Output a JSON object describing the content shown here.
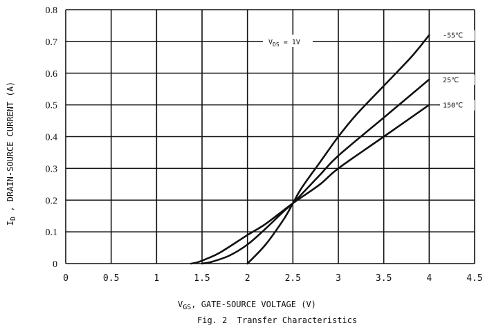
{
  "chart_data": {
    "type": "line",
    "caption": "Fig. 2  Transfer Characteristics",
    "xlabel": {
      "main": "V",
      "sub": "GS",
      "rest": ",  GATE-SOURCE VOLTAGE (V)"
    },
    "ylabel": {
      "main": "I",
      "sub": "D",
      "rest": " , DRAIN-SOURCE CURRENT (A)"
    },
    "annotation": {
      "main": "V",
      "sub": "DS",
      "rest": " = 1V"
    },
    "xlim": [
      0,
      4.5
    ],
    "ylim": [
      0,
      0.8
    ],
    "xticks": [
      0,
      0.5,
      1,
      1.5,
      2,
      2.5,
      3,
      3.5,
      4,
      4.5
    ],
    "xtick_labels": [
      "0",
      "0.5",
      "1",
      "1.5",
      "2",
      "2.5",
      "3",
      "3.5",
      "4",
      "4.5"
    ],
    "yticks": [
      0,
      0.1,
      0.2,
      0.3,
      0.4,
      0.5,
      0.6,
      0.7,
      0.8
    ],
    "ytick_labels": [
      "0",
      "0.1",
      "0.2",
      "0.3",
      "0.4",
      "0.5",
      "0.6",
      "0.7",
      "0.8"
    ],
    "grid": true,
    "series": [
      {
        "name": "-55℃",
        "x": [
          2.0,
          2.2,
          2.4,
          2.5,
          2.6,
          2.8,
          3.0,
          3.2,
          3.5,
          3.8,
          4.0
        ],
        "y": [
          0.0,
          0.06,
          0.14,
          0.19,
          0.24,
          0.32,
          0.4,
          0.47,
          0.56,
          0.65,
          0.72
        ]
      },
      {
        "name": "25℃",
        "x": [
          1.5,
          1.6,
          1.8,
          2.0,
          2.2,
          2.4,
          2.5,
          2.6,
          2.8,
          3.0,
          3.5,
          4.0
        ],
        "y": [
          0.0,
          0.005,
          0.025,
          0.06,
          0.11,
          0.165,
          0.19,
          0.22,
          0.28,
          0.34,
          0.46,
          0.58
        ]
      },
      {
        "name": "150℃",
        "x": [
          1.38,
          1.45,
          1.55,
          1.7,
          2.0,
          2.2,
          2.5,
          2.8,
          3.0,
          3.5,
          4.0
        ],
        "y": [
          0.0,
          0.004,
          0.015,
          0.035,
          0.09,
          0.125,
          0.19,
          0.25,
          0.3,
          0.4,
          0.5
        ]
      }
    ]
  }
}
